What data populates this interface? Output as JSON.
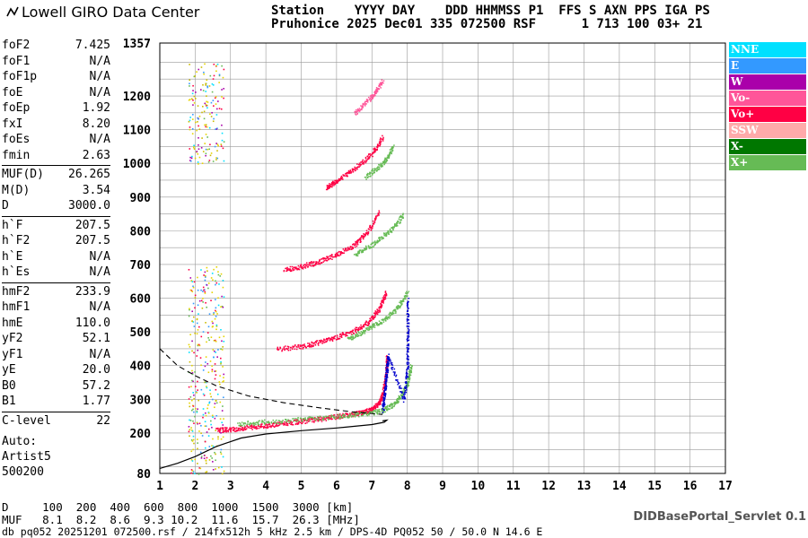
{
  "brand": {
    "name": "Lowell GIRO Data Center"
  },
  "header": {
    "line1": "Station    YYYY DAY    DDD HHMMSS P1  FFS S AXN PPS IGA PS",
    "line2": "Pruhonice 2025 Dec01 335 072500 RSF      1 713 100 03+ 21"
  },
  "params": {
    "groups": [
      [
        {
          "k": "foF2",
          "v": "7.425"
        },
        {
          "k": "foF1",
          "v": "N/A"
        },
        {
          "k": "foF1p",
          "v": "N/A"
        },
        {
          "k": "foE",
          "v": "N/A"
        },
        {
          "k": "foEp",
          "v": "1.92"
        },
        {
          "k": "fxI",
          "v": "8.20"
        },
        {
          "k": "foEs",
          "v": "N/A"
        },
        {
          "k": "fmin",
          "v": "2.63"
        }
      ],
      [
        {
          "k": "MUF(D)",
          "v": "26.265"
        },
        {
          "k": "M(D)",
          "v": "3.54"
        },
        {
          "k": "D",
          "v": "3000.0"
        }
      ],
      [
        {
          "k": "h`F",
          "v": "207.5"
        },
        {
          "k": "h`F2",
          "v": "207.5"
        },
        {
          "k": "h`E",
          "v": "N/A"
        },
        {
          "k": "h`Es",
          "v": "N/A"
        }
      ],
      [
        {
          "k": "hmF2",
          "v": "233.9"
        },
        {
          "k": "hmF1",
          "v": "N/A"
        },
        {
          "k": "hmE",
          "v": "110.0"
        },
        {
          "k": "yF2",
          "v": "52.1"
        },
        {
          "k": "yF1",
          "v": "N/A"
        },
        {
          "k": "yE",
          "v": "20.0"
        },
        {
          "k": "B0",
          "v": "57.2"
        },
        {
          "k": "B1",
          "v": "1.77"
        }
      ],
      [
        {
          "k": "C-level",
          "v": "22"
        }
      ]
    ],
    "auto": [
      "Auto:",
      "Artist5",
      "500200"
    ]
  },
  "legend": [
    {
      "label": "NNE",
      "color": "#00e0ff"
    },
    {
      "label": "E",
      "color": "#3399ff"
    },
    {
      "label": "W",
      "color": "#aa00aa"
    },
    {
      "label": "Vo-",
      "color": "#ff5599"
    },
    {
      "label": "Vo+",
      "color": "#ff0044"
    },
    {
      "label": "SSW",
      "color": "#ffaaaa"
    },
    {
      "label": "X-",
      "color": "#007700"
    },
    {
      "label": "X+",
      "color": "#66bb55"
    }
  ],
  "footer": {
    "d_line": "D     100  200  400  600  800  1000  1500  3000 [km]",
    "muf_line": "MUF   8.1  8.2  8.6  9.3 10.2  11.6  15.7  26.3 [MHz]",
    "db_line": "db pq052 20251201 072500.rsf / 214fx512h 5 kHz 2.5 km / DPS-4D PQ052 50 / 50.0 N 14.6 E",
    "servlet": "DIDBasePortal_Servlet 0.1"
  },
  "chart_data": {
    "type": "scatter",
    "xlim": [
      1,
      17
    ],
    "ylim": [
      80,
      1357
    ],
    "x_ticks": [
      1,
      2,
      3,
      4,
      5,
      6,
      7,
      8,
      9,
      10,
      11,
      12,
      13,
      14,
      15,
      16,
      17
    ],
    "y_ticks": [
      80,
      200,
      300,
      400,
      500,
      600,
      700,
      800,
      900,
      1000,
      1100,
      1200,
      1357
    ],
    "grid": true,
    "traces": [
      {
        "name": "O-trace F2",
        "color": "#ff0044",
        "points": [
          [
            2.6,
            210
          ],
          [
            3,
            212
          ],
          [
            3.5,
            218
          ],
          [
            4,
            224
          ],
          [
            4.5,
            230
          ],
          [
            5,
            236
          ],
          [
            5.5,
            242
          ],
          [
            6,
            250
          ],
          [
            6.5,
            258
          ],
          [
            6.8,
            264
          ],
          [
            7.0,
            272
          ],
          [
            7.2,
            290
          ],
          [
            7.3,
            320
          ],
          [
            7.4,
            380
          ],
          [
            7.42,
            430
          ]
        ]
      },
      {
        "name": "X-trace F2",
        "color": "#66bb55",
        "points": [
          [
            3.2,
            228
          ],
          [
            4,
            234
          ],
          [
            5,
            242
          ],
          [
            6,
            250
          ],
          [
            6.8,
            258
          ],
          [
            7.3,
            268
          ],
          [
            7.6,
            285
          ],
          [
            7.8,
            310
          ],
          [
            8.0,
            350
          ],
          [
            8.1,
            400
          ]
        ]
      },
      {
        "name": "2-hop O",
        "color": "#ff0044",
        "points": [
          [
            4.3,
            450
          ],
          [
            5,
            458
          ],
          [
            5.5,
            470
          ],
          [
            6,
            486
          ],
          [
            6.5,
            505
          ],
          [
            6.9,
            530
          ],
          [
            7.2,
            570
          ],
          [
            7.4,
            620
          ]
        ]
      },
      {
        "name": "2-hop X",
        "color": "#66bb55",
        "points": [
          [
            6.3,
            480
          ],
          [
            6.8,
            505
          ],
          [
            7.3,
            535
          ],
          [
            7.7,
            570
          ],
          [
            8.0,
            620
          ]
        ]
      },
      {
        "name": "3-hop O",
        "color": "#ff0044",
        "points": [
          [
            4.5,
            685
          ],
          [
            5,
            695
          ],
          [
            5.5,
            710
          ],
          [
            6,
            730
          ],
          [
            6.5,
            760
          ],
          [
            6.9,
            800
          ],
          [
            7.2,
            860
          ]
        ]
      },
      {
        "name": "3-hop X",
        "color": "#66bb55",
        "points": [
          [
            6.5,
            730
          ],
          [
            7,
            760
          ],
          [
            7.5,
            800
          ],
          [
            7.9,
            850
          ]
        ]
      },
      {
        "name": "4-hop O",
        "color": "#ff0044",
        "points": [
          [
            5.7,
            930
          ],
          [
            6,
            950
          ],
          [
            6.5,
            985
          ],
          [
            7,
            1030
          ],
          [
            7.3,
            1080
          ]
        ]
      },
      {
        "name": "4-hop X",
        "color": "#66bb55",
        "points": [
          [
            6.8,
            960
          ],
          [
            7.3,
            1000
          ],
          [
            7.6,
            1050
          ]
        ]
      },
      {
        "name": "5-hop O",
        "color": "#ff5599",
        "points": [
          [
            6.5,
            1150
          ],
          [
            7,
            1200
          ],
          [
            7.3,
            1245
          ]
        ]
      },
      {
        "name": "W vertical",
        "color": "#0000cc",
        "points": [
          [
            7.3,
            270
          ],
          [
            7.35,
            320
          ],
          [
            7.4,
            380
          ],
          [
            7.45,
            430
          ],
          [
            7.9,
            300
          ],
          [
            8.0,
            400
          ],
          [
            8.0,
            500
          ],
          [
            8.0,
            600
          ]
        ]
      }
    ],
    "profile": {
      "true_height": [
        [
          1.0,
          95
        ],
        [
          1.5,
          110
        ],
        [
          2.0,
          130
        ],
        [
          2.6,
          160
        ],
        [
          3.3,
          185
        ],
        [
          4,
          197
        ],
        [
          5,
          207
        ],
        [
          6,
          215
        ],
        [
          7,
          225
        ],
        [
          7.35,
          232
        ],
        [
          7.42,
          238
        ],
        [
          7.3,
          236
        ]
      ],
      "model_dashed": [
        [
          1.0,
          450
        ],
        [
          1.5,
          400
        ],
        [
          2,
          370
        ],
        [
          2.6,
          340
        ],
        [
          3.5,
          310
        ],
        [
          4.5,
          290
        ],
        [
          5.5,
          275
        ],
        [
          6.5,
          262
        ],
        [
          7.3,
          255
        ]
      ]
    },
    "es_band": [
      {
        "x": [
          1.8,
          2.8
        ],
        "y": [
          80,
          700
        ]
      },
      {
        "x": [
          1.8,
          2.8
        ],
        "y": [
          1000,
          1300
        ]
      }
    ]
  }
}
